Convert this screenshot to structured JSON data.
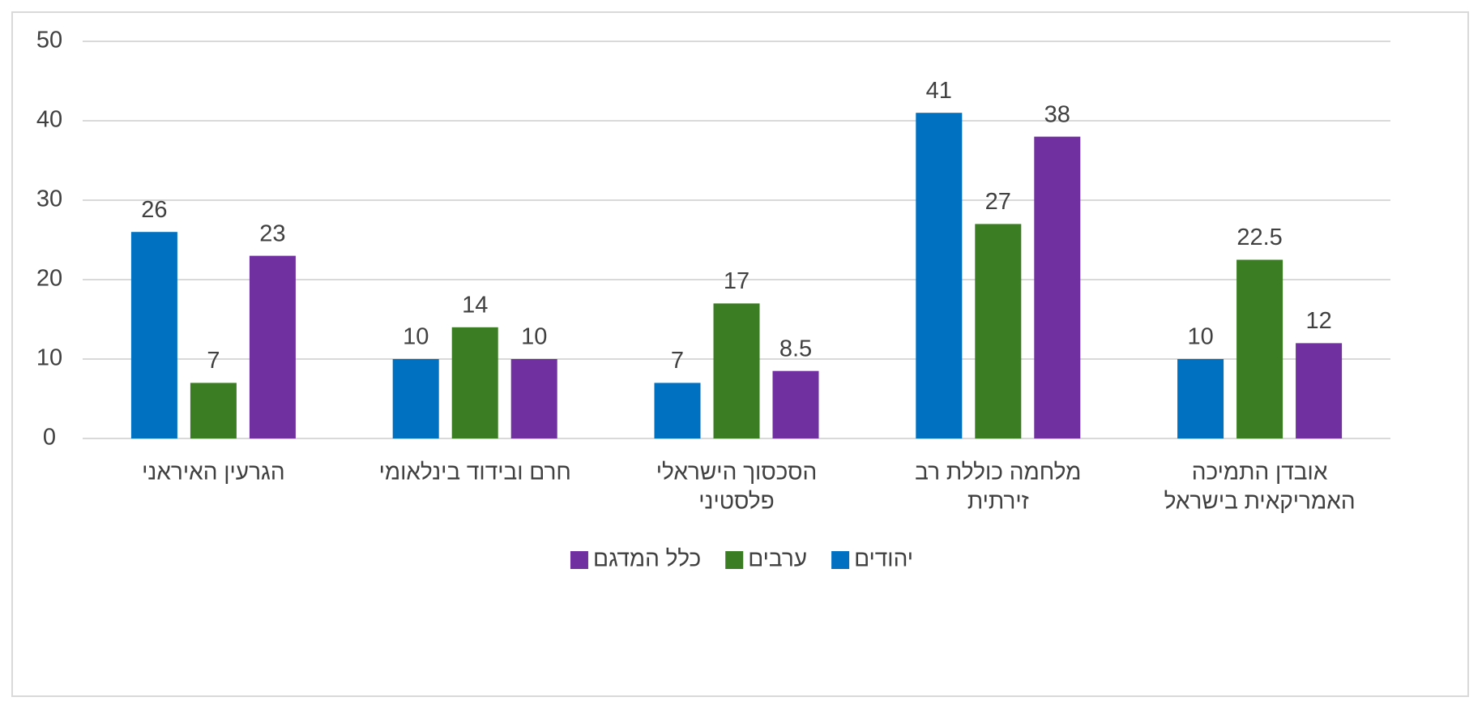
{
  "chart_data": {
    "type": "bar",
    "categories": [
      [
        "הגרעין האיראני"
      ],
      [
        "חרם ובידוד בינלאומי"
      ],
      [
        "הסכסוך הישראלי",
        "פלסטיני"
      ],
      [
        "מלחמה כוללת רב",
        "זירתית"
      ],
      [
        "אובדן התמיכה",
        "האמריקאית בישראל"
      ]
    ],
    "series": [
      {
        "name": "יהודים",
        "color": "#0070c0",
        "values": [
          26,
          10,
          7,
          41,
          10
        ]
      },
      {
        "name": "ערבים",
        "color": "#3a7d22",
        "values": [
          7,
          14,
          17,
          27,
          22.5
        ]
      },
      {
        "name": "כלל המדגם",
        "color": "#7030a0",
        "values": [
          23,
          10,
          8.5,
          38,
          12
        ]
      }
    ],
    "data_labels": [
      [
        "26",
        "10",
        "7",
        "41",
        "10"
      ],
      [
        "7",
        "14",
        "17",
        "27",
        "22.5"
      ],
      [
        "23",
        "10",
        "8.5",
        "38",
        "12"
      ]
    ],
    "ylim": [
      0,
      50
    ],
    "yticks": [
      0,
      10,
      20,
      30,
      40,
      50
    ],
    "grid": true,
    "legend_position": "bottom",
    "gridline_color": "#d9d9d9"
  }
}
